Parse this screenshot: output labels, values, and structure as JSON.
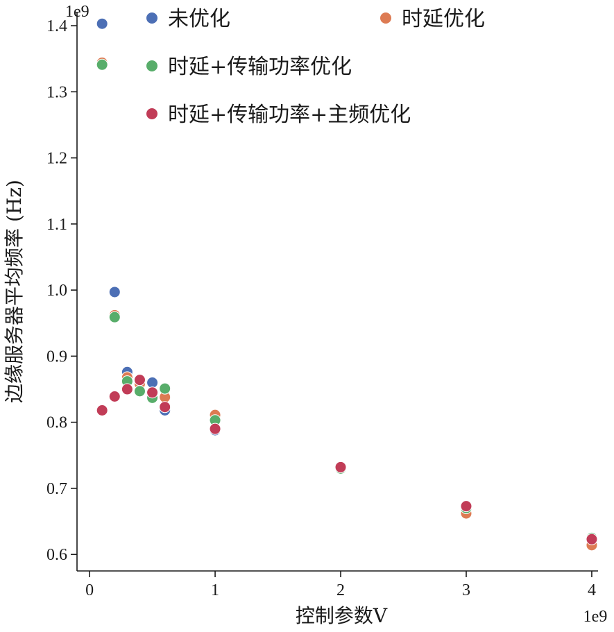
{
  "chart_data": {
    "type": "scatter",
    "title": "",
    "xlabel": "控制参数V",
    "ylabel": "边缘服务器平均频率 (Hz)",
    "x_scale_label": "1e9",
    "y_scale_label": "1e9",
    "xlim": [
      -0.1,
      4.05
    ],
    "ylim": [
      0.575,
      1.42
    ],
    "x_ticks": [
      0,
      1,
      2,
      3,
      4
    ],
    "x_tick_labels": [
      "0",
      "1",
      "2",
      "3",
      "4"
    ],
    "y_ticks": [
      0.6,
      0.7,
      0.8,
      0.9,
      1.0,
      1.1,
      1.2,
      1.3,
      1.4
    ],
    "y_tick_labels": [
      "0.6",
      "0.7",
      "0.8",
      "0.9",
      "1.0",
      "1.1",
      "1.2",
      "1.3",
      "1.4"
    ],
    "grid": false,
    "legend_position": "top",
    "x": [
      0.1,
      0.2,
      0.3,
      0.4,
      0.5,
      0.6,
      1,
      2,
      3,
      4
    ],
    "series": [
      {
        "name": "未优化",
        "color": "#4c6fb5",
        "values": [
          1.403,
          0.997,
          0.876,
          0.862,
          0.86,
          0.818,
          0.788,
          0.73,
          0.668,
          0.62
        ]
      },
      {
        "name": "时延优化",
        "color": "#dd7b53",
        "values": [
          1.344,
          0.962,
          0.868,
          0.858,
          0.838,
          0.838,
          0.811,
          0.731,
          0.662,
          0.614
        ]
      },
      {
        "name": "时延+传输功率优化",
        "color": "#58ad6a",
        "values": [
          1.341,
          0.959,
          0.862,
          0.847,
          0.837,
          0.851,
          0.803,
          0.73,
          0.67,
          0.625
        ]
      },
      {
        "name": "时延+传输功率+主频优化",
        "color": "#c13c57",
        "values": [
          0.818,
          0.839,
          0.85,
          0.864,
          0.845,
          0.823,
          0.79,
          0.732,
          0.673,
          0.623
        ]
      }
    ]
  }
}
